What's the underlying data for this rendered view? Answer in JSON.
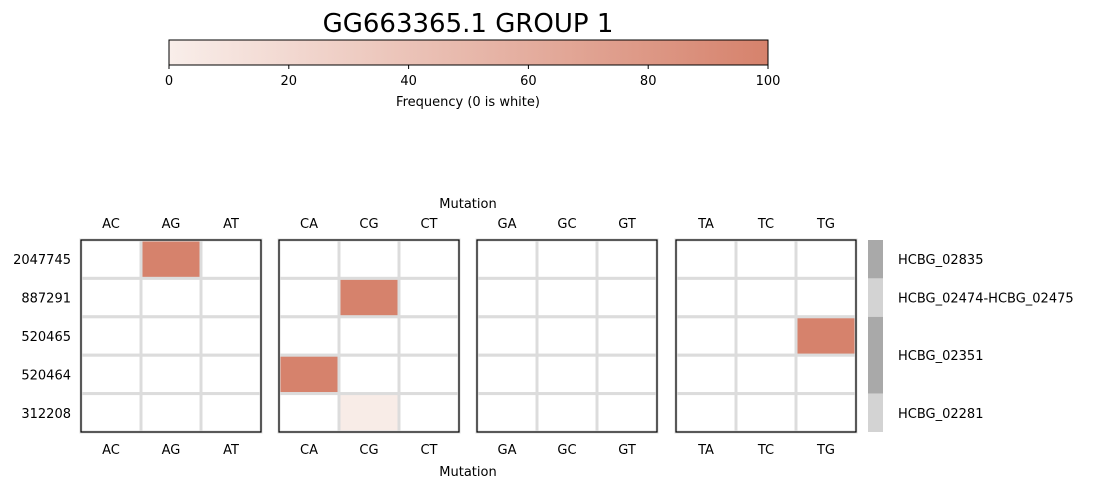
{
  "chart_data": {
    "type": "heatmap",
    "title": "GG663365.1 GROUP 1",
    "colorbar": {
      "label": "Frequency (0 is white)",
      "ticks": [
        0,
        20,
        40,
        60,
        80,
        100
      ],
      "range": [
        0,
        100
      ],
      "color_low": "#f9eeea",
      "color_high": "#d6826c"
    },
    "xlabel": "Mutation",
    "rows": [
      "2047745",
      "887291",
      "520465",
      "520464",
      "312208"
    ],
    "panels": [
      {
        "columns": [
          "AC",
          "AG",
          "AT"
        ],
        "values": [
          [
            0,
            100,
            0
          ],
          [
            0,
            0,
            0
          ],
          [
            0,
            0,
            0
          ],
          [
            0,
            0,
            0
          ],
          [
            0,
            0,
            0
          ]
        ]
      },
      {
        "columns": [
          "CA",
          "CG",
          "CT"
        ],
        "values": [
          [
            0,
            0,
            0
          ],
          [
            0,
            100,
            0
          ],
          [
            0,
            0,
            0
          ],
          [
            100,
            0,
            0
          ],
          [
            0,
            2,
            0
          ]
        ]
      },
      {
        "columns": [
          "GA",
          "GC",
          "GT"
        ],
        "values": [
          [
            0,
            0,
            0
          ],
          [
            0,
            0,
            0
          ],
          [
            0,
            0,
            0
          ],
          [
            0,
            0,
            0
          ],
          [
            0,
            0,
            0
          ]
        ]
      },
      {
        "columns": [
          "TA",
          "TC",
          "TG"
        ],
        "values": [
          [
            0,
            0,
            0
          ],
          [
            0,
            0,
            0
          ],
          [
            0,
            0,
            100
          ],
          [
            0,
            0,
            0
          ],
          [
            0,
            0,
            0
          ]
        ]
      }
    ],
    "gene_annotations": [
      {
        "label": "HCBG_02835",
        "rows": [
          0
        ],
        "color": "#a9a9a9"
      },
      {
        "label": "HCBG_02474-HCBG_02475",
        "rows": [
          1
        ],
        "color": "#d3d3d3"
      },
      {
        "label": "HCBG_02351",
        "rows": [
          2,
          3
        ],
        "color": "#a9a9a9"
      },
      {
        "label": "HCBG_02281",
        "rows": [
          4
        ],
        "color": "#d3d3d3"
      }
    ]
  }
}
